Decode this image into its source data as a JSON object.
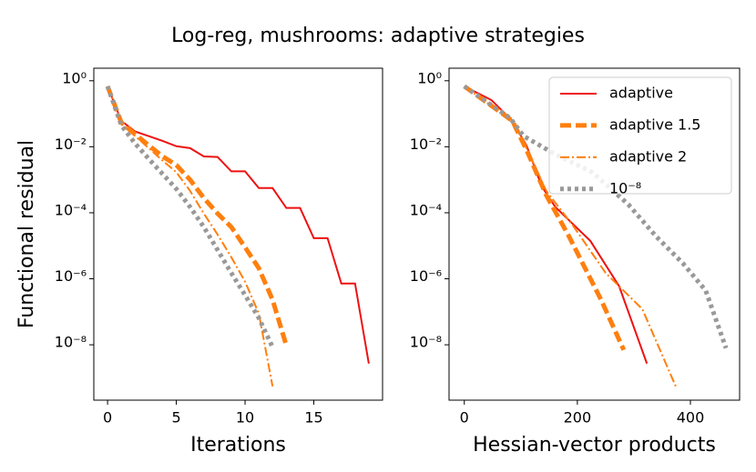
{
  "title": "Log-reg, mushrooms: adaptive strategies",
  "chart_data": [
    {
      "type": "line",
      "ylabel": "Functional residual",
      "xlabel": "Iterations",
      "yscale": "log",
      "xlim": [
        -1,
        20
      ],
      "xticks": [
        0,
        5,
        10,
        15
      ],
      "ylim": [
        2.4,
        2.1e-10
      ],
      "yticks": [
        {
          "value": 1,
          "label": "10⁰"
        },
        {
          "value": 0.01,
          "label": "10⁻²"
        },
        {
          "value": 0.0001,
          "label": "10⁻⁴"
        },
        {
          "value": 1e-06,
          "label": "10⁻⁶"
        },
        {
          "value": 1e-08,
          "label": "10⁻⁸"
        }
      ],
      "series": [
        {
          "name": "adaptive",
          "color": "#ee1111",
          "linestyle": "solid",
          "x": [
            0,
            1,
            2,
            3,
            4,
            5,
            6,
            7,
            8,
            9,
            10,
            11,
            12,
            13,
            14,
            15,
            16,
            17,
            18,
            19
          ],
          "values": [
            0.68,
            0.061,
            0.029,
            0.021,
            0.015,
            0.0104,
            0.0091,
            0.0051,
            0.0049,
            0.0018,
            0.0018,
            0.00056,
            0.00056,
            0.00014,
            0.00014,
            1.7e-05,
            1.7e-05,
            7.2e-07,
            7.2e-07,
            2.7e-09
          ]
        },
        {
          "name": "adaptive 1.5",
          "color": "#ff7f0e",
          "linestyle": "dashed",
          "x": [
            0,
            1,
            2,
            3,
            4,
            5,
            6,
            7,
            8,
            9,
            10,
            11,
            12,
            13
          ],
          "values": [
            0.68,
            0.054,
            0.024,
            0.011,
            0.0051,
            0.0028,
            0.001,
            0.00028,
            9.5e-05,
            3.7e-05,
            9e-06,
            2.1e-06,
            2.3e-07,
            9.6e-09
          ]
        },
        {
          "name": "adaptive 2",
          "color": "#ff7f0e",
          "linestyle": "dashdot",
          "x": [
            0,
            1,
            2,
            3,
            4,
            5,
            6,
            7,
            8,
            9,
            10,
            11,
            12
          ],
          "values": [
            0.68,
            0.054,
            0.021,
            0.0091,
            0.0038,
            0.0017,
            0.00046,
            9.5e-05,
            2.2e-05,
            4.5e-06,
            8.2e-07,
            8.9e-08,
            5.5e-10
          ]
        },
        {
          "name": "10⁻⁸",
          "color": "#999999",
          "linestyle": "dotted",
          "x": [
            0,
            1,
            2,
            3,
            4,
            5,
            6,
            7,
            8,
            9,
            10,
            11,
            12
          ],
          "values": [
            0.68,
            0.045,
            0.0126,
            0.0043,
            0.0015,
            0.00053,
            0.00015,
            3.7e-05,
            7.5e-06,
            1.5e-06,
            3.2e-07,
            6.5e-08,
            8.5e-09
          ]
        }
      ]
    },
    {
      "type": "line",
      "xlabel": "Hessian-vector products",
      "yscale": "log",
      "legend": "upper right",
      "xlim": [
        -27,
        487
      ],
      "xticks": [
        0,
        200,
        400
      ],
      "ylim": [
        2.4,
        2.1e-10
      ],
      "yticks": [
        {
          "value": 1,
          "label": "10⁰"
        },
        {
          "value": 0.01,
          "label": "10⁻²"
        },
        {
          "value": 0.0001,
          "label": "10⁻⁴"
        },
        {
          "value": 1e-06,
          "label": "10⁻⁶"
        },
        {
          "value": 1e-08,
          "label": "10⁻⁸"
        }
      ],
      "series": [
        {
          "name": "adaptive",
          "color": "#ee1111",
          "linestyle": "solid",
          "x": [
            0,
            48,
            85,
            110,
            137,
            161,
            223,
            274,
            323
          ],
          "values": [
            0.68,
            0.26,
            0.061,
            0.011,
            0.00063,
            0.00015,
            1.4e-05,
            5.9e-07,
            2.7e-09
          ]
        },
        {
          "name": "adaptive 1.5",
          "color": "#ff7f0e",
          "linestyle": "dashed",
          "x": [
            0,
            85,
            110,
            145,
            185,
            242,
            282
          ],
          "values": [
            0.68,
            0.061,
            0.0081,
            0.00034,
            1.95e-05,
            2.3e-07,
            7e-09
          ]
        },
        {
          "name": "adaptive 2",
          "color": "#ff7f0e",
          "linestyle": "dashdot",
          "x": [
            0,
            85,
            110,
            145,
            194,
            250,
            315,
            374
          ],
          "values": [
            0.68,
            0.061,
            0.0091,
            0.00046,
            3.7e-05,
            1.5e-06,
            1.2e-07,
            5.5e-10
          ]
        },
        {
          "name": "10⁻⁸",
          "color": "#999999",
          "linestyle": "dotted",
          "x": [
            0,
            81,
            105,
            161,
            226,
            290,
            339,
            387,
            427,
            463
          ],
          "values": [
            0.68,
            0.074,
            0.021,
            0.0059,
            0.0017,
            0.00018,
            1.95e-05,
            2.9e-06,
            4.4e-07,
            7.9e-09
          ]
        }
      ]
    }
  ]
}
